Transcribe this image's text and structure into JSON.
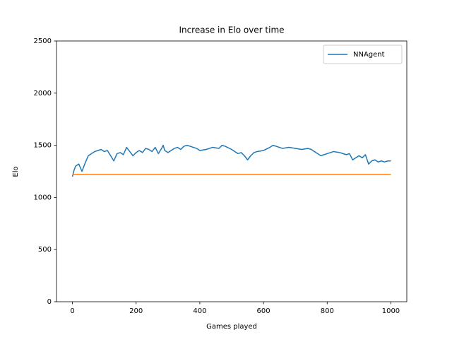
{
  "chart_data": {
    "type": "line",
    "title": "Increase in Elo over time",
    "x_label": "Games played",
    "y_label": "Elo",
    "xlim": [
      -50,
      1050
    ],
    "ylim": [
      0,
      2500
    ],
    "xticks": [
      0,
      200,
      400,
      600,
      800,
      1000
    ],
    "yticks": [
      0,
      500,
      1000,
      1500,
      2000,
      2500
    ],
    "legend": "upper right",
    "series": [
      {
        "name": "NNAgent",
        "color": "#1f77b4",
        "x": [
          0,
          5,
          10,
          20,
          30,
          40,
          50,
          60,
          70,
          80,
          90,
          100,
          110,
          120,
          130,
          140,
          150,
          160,
          170,
          180,
          190,
          200,
          210,
          220,
          230,
          240,
          250,
          260,
          270,
          280,
          285,
          290,
          300,
          310,
          320,
          330,
          340,
          350,
          360,
          370,
          380,
          390,
          400,
          420,
          440,
          460,
          470,
          480,
          500,
          510,
          520,
          530,
          540,
          550,
          560,
          570,
          580,
          600,
          620,
          630,
          640,
          660,
          680,
          700,
          720,
          740,
          750,
          760,
          780,
          800,
          820,
          840,
          860,
          870,
          880,
          890,
          900,
          910,
          920,
          930,
          940,
          950,
          960,
          970,
          980,
          990,
          1000
        ],
        "values": [
          1200,
          1260,
          1300,
          1320,
          1250,
          1330,
          1400,
          1420,
          1440,
          1450,
          1460,
          1440,
          1450,
          1400,
          1350,
          1420,
          1430,
          1410,
          1480,
          1440,
          1400,
          1430,
          1450,
          1430,
          1470,
          1460,
          1440,
          1480,
          1420,
          1470,
          1500,
          1450,
          1430,
          1450,
          1470,
          1480,
          1460,
          1490,
          1500,
          1490,
          1480,
          1470,
          1450,
          1460,
          1480,
          1470,
          1500,
          1490,
          1460,
          1440,
          1420,
          1430,
          1400,
          1360,
          1400,
          1430,
          1440,
          1450,
          1480,
          1500,
          1490,
          1470,
          1480,
          1470,
          1460,
          1470,
          1460,
          1440,
          1400,
          1420,
          1440,
          1430,
          1410,
          1420,
          1360,
          1380,
          1400,
          1380,
          1410,
          1320,
          1350,
          1360,
          1340,
          1350,
          1340,
          1350,
          1350
        ]
      },
      {
        "color": "#ff7f0e",
        "x": [
          0,
          1000
        ],
        "values": [
          1220,
          1220
        ]
      }
    ]
  }
}
